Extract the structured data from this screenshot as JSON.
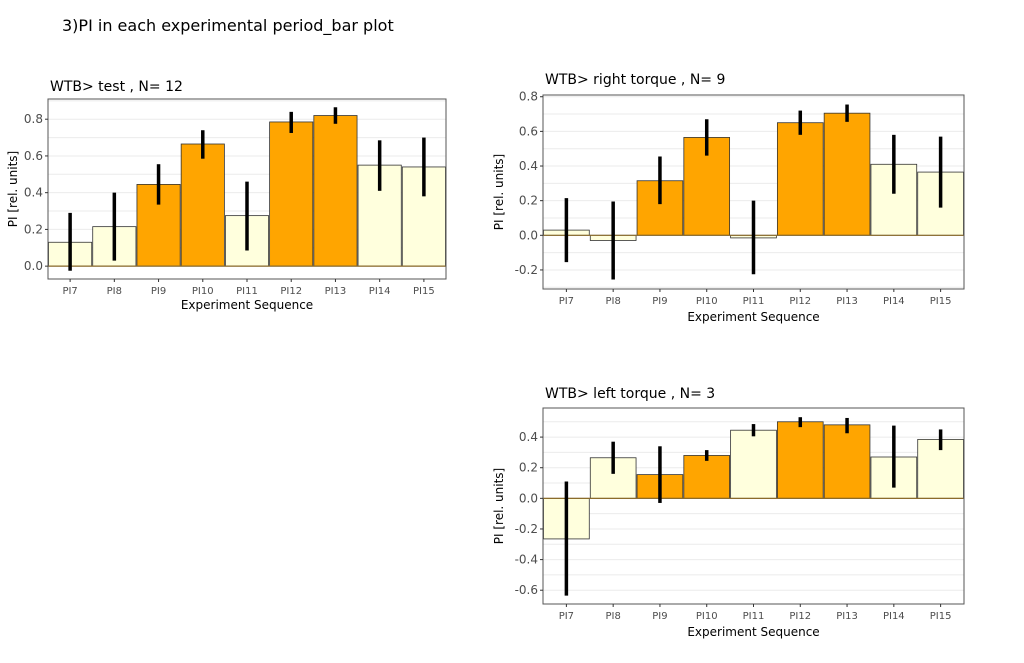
{
  "page_title": "3)PI in each experimental period_bar plot",
  "colors": {
    "light": "#ffffdd",
    "dark": "#ffa500",
    "bar_border": "#333333",
    "error": "#000000",
    "zero_line": "#8b6b2a",
    "grid": "#ebebeb",
    "panel_border": "#555555"
  },
  "chart_data": [
    {
      "type": "bar",
      "title": "WTB> test , N= 12",
      "xlabel": "Experiment Sequence",
      "ylabel": "PI [rel. units]",
      "categories": [
        "PI7",
        "PI8",
        "PI9",
        "PI10",
        "PI11",
        "PI12",
        "PI13",
        "PI14",
        "PI15"
      ],
      "values": [
        0.13,
        0.215,
        0.445,
        0.665,
        0.275,
        0.785,
        0.82,
        0.55,
        0.54
      ],
      "err_low": [
        -0.025,
        0.03,
        0.335,
        0.585,
        0.085,
        0.725,
        0.775,
        0.41,
        0.38
      ],
      "err_high": [
        0.29,
        0.4,
        0.555,
        0.74,
        0.46,
        0.84,
        0.865,
        0.685,
        0.7
      ],
      "fill": [
        "light",
        "light",
        "dark",
        "dark",
        "light",
        "dark",
        "dark",
        "light",
        "light"
      ],
      "ylim": [
        -0.07,
        0.91
      ],
      "yticks": [
        0.0,
        0.2,
        0.4,
        0.6,
        0.8
      ],
      "ytick_labels": [
        "0.0",
        "0.2",
        "0.4",
        "0.6",
        "0.8"
      ],
      "grid": true
    },
    {
      "type": "bar",
      "title": "WTB> right torque , N= 9",
      "xlabel": "Experiment Sequence",
      "ylabel": "PI [rel. units]",
      "categories": [
        "PI7",
        "PI8",
        "PI9",
        "PI10",
        "PI11",
        "PI12",
        "PI13",
        "PI14",
        "PI15"
      ],
      "values": [
        0.03,
        -0.03,
        0.315,
        0.565,
        -0.015,
        0.65,
        0.705,
        0.41,
        0.365
      ],
      "err_low": [
        -0.155,
        -0.255,
        0.18,
        0.46,
        -0.225,
        0.58,
        0.655,
        0.24,
        0.16
      ],
      "err_high": [
        0.215,
        0.195,
        0.455,
        0.67,
        0.2,
        0.72,
        0.755,
        0.58,
        0.57
      ],
      "fill": [
        "light",
        "light",
        "dark",
        "dark",
        "light",
        "dark",
        "dark",
        "light",
        "light"
      ],
      "ylim": [
        -0.31,
        0.81
      ],
      "yticks": [
        -0.2,
        0.0,
        0.2,
        0.4,
        0.6,
        0.8
      ],
      "ytick_labels": [
        "-0.2",
        "0.0",
        "0.2",
        "0.4",
        "0.6",
        "0.8"
      ],
      "grid": true
    },
    {
      "type": "bar",
      "title": "WTB> left torque , N= 3",
      "xlabel": "Experiment Sequence",
      "ylabel": "PI [rel. units]",
      "categories": [
        "PI7",
        "PI8",
        "PI9",
        "PI10",
        "PI11",
        "PI12",
        "PI13",
        "PI14",
        "PI15"
      ],
      "values": [
        -0.265,
        0.265,
        0.155,
        0.28,
        0.445,
        0.5,
        0.48,
        0.27,
        0.385
      ],
      "err_low": [
        -0.635,
        0.16,
        -0.03,
        0.245,
        0.405,
        0.465,
        0.425,
        0.07,
        0.315
      ],
      "err_high": [
        0.11,
        0.37,
        0.34,
        0.315,
        0.485,
        0.53,
        0.525,
        0.475,
        0.45
      ],
      "fill": [
        "light",
        "light",
        "dark",
        "dark",
        "light",
        "dark",
        "dark",
        "light",
        "light"
      ],
      "ylim": [
        -0.69,
        0.59
      ],
      "yticks": [
        -0.6,
        -0.4,
        -0.2,
        0.0,
        0.2,
        0.4
      ],
      "ytick_labels": [
        "-0.6",
        "-0.4",
        "-0.2",
        "0.0",
        "0.2",
        "0.4"
      ],
      "grid": true
    }
  ]
}
